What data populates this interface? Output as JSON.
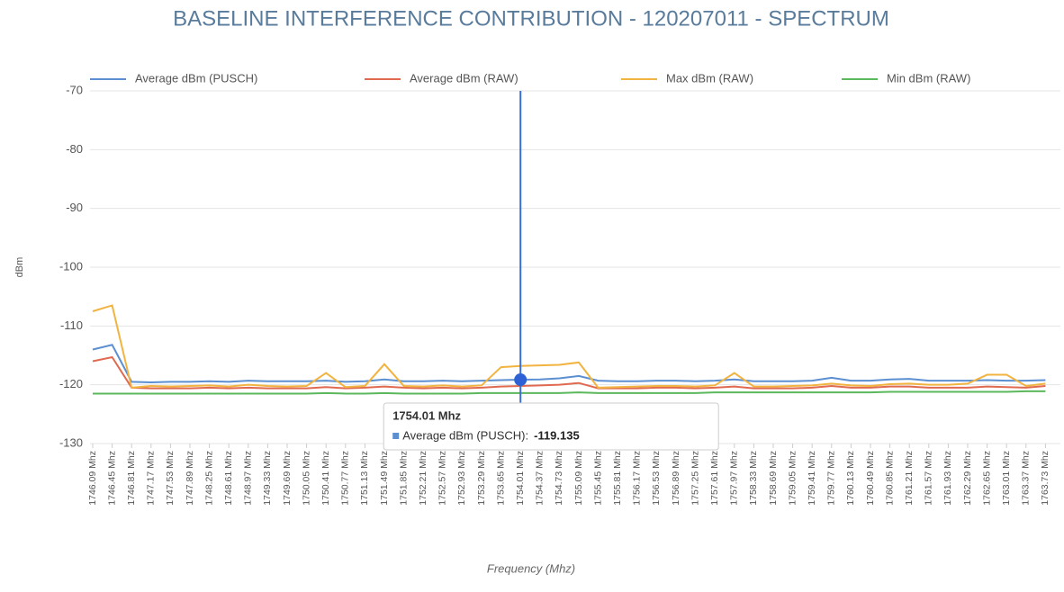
{
  "chart_data": {
    "type": "line",
    "title": "BASELINE INTERFERENCE CONTRIBUTION - 120207011 - SPECTRUM",
    "x_label": "Frequency (Mhz)",
    "y_label": "dBm",
    "categories": [
      "1746.09 Mhz",
      "1746.45 Mhz",
      "1746.81 Mhz",
      "1747.17 Mhz",
      "1747.53 Mhz",
      "1747.89 Mhz",
      "1748.25 Mhz",
      "1748.61 Mhz",
      "1748.97 Mhz",
      "1749.33 Mhz",
      "1749.69 Mhz",
      "1750.05 Mhz",
      "1750.41 Mhz",
      "1750.77 Mhz",
      "1751.13 Mhz",
      "1751.49 Mhz",
      "1751.85 Mhz",
      "1752.21 Mhz",
      "1752.57 Mhz",
      "1752.93 Mhz",
      "1753.29 Mhz",
      "1753.65 Mhz",
      "1754.01 Mhz",
      "1754.37 Mhz",
      "1754.73 Mhz",
      "1755.09 Mhz",
      "1755.45 Mhz",
      "1755.81 Mhz",
      "1756.17 Mhz",
      "1756.53 Mhz",
      "1756.89 Mhz",
      "1757.25 Mhz",
      "1757.61 Mhz",
      "1757.97 Mhz",
      "1758.33 Mhz",
      "1758.69 Mhz",
      "1759.05 Mhz",
      "1759.41 Mhz",
      "1759.77 Mhz",
      "1760.13 Mhz",
      "1760.49 Mhz",
      "1760.85 Mhz",
      "1761.21 Mhz",
      "1761.57 Mhz",
      "1761.93 Mhz",
      "1762.29 Mhz",
      "1762.65 Mhz",
      "1763.01 Mhz",
      "1763.37 Mhz",
      "1763.73 Mhz"
    ],
    "series": [
      {
        "name": "Average dBm (PUSCH)",
        "color": "#5b8fd1",
        "values": [
          -114,
          -113.2,
          -119.5,
          -119.6,
          -119.5,
          -119.5,
          -119.4,
          -119.5,
          -119.3,
          -119.4,
          -119.4,
          -119.4,
          -119.3,
          -119.5,
          -119.4,
          -119.1,
          -119.4,
          -119.4,
          -119.3,
          -119.4,
          -119.3,
          -119.2,
          -119.135,
          -119.1,
          -118.9,
          -118.5,
          -119.3,
          -119.4,
          -119.4,
          -119.3,
          -119.3,
          -119.4,
          -119.3,
          -119.1,
          -119.4,
          -119.4,
          -119.4,
          -119.3,
          -118.8,
          -119.3,
          -119.3,
          -119.1,
          -119,
          -119.3,
          -119.3,
          -119.3,
          -119.2,
          -119.3,
          -119.3,
          -119.2
        ]
      },
      {
        "name": "Average dBm (RAW)",
        "color": "#e06a50",
        "values": [
          -116,
          -115.3,
          -120.5,
          -120.6,
          -120.6,
          -120.6,
          -120.5,
          -120.6,
          -120.5,
          -120.6,
          -120.6,
          -120.6,
          -120.4,
          -120.6,
          -120.5,
          -120.3,
          -120.5,
          -120.6,
          -120.5,
          -120.6,
          -120.5,
          -120.3,
          -120.2,
          -120.1,
          -120,
          -119.7,
          -120.6,
          -120.6,
          -120.6,
          -120.5,
          -120.5,
          -120.6,
          -120.5,
          -120.3,
          -120.6,
          -120.6,
          -120.6,
          -120.5,
          -120.2,
          -120.5,
          -120.5,
          -120.3,
          -120.3,
          -120.5,
          -120.5,
          -120.5,
          -120.3,
          -120.4,
          -120.5,
          -120.2
        ]
      },
      {
        "name": "Max dBm (RAW)",
        "color": "#f2b441",
        "values": [
          -107.5,
          -106.5,
          -120.5,
          -120.2,
          -120.3,
          -120.2,
          -120.1,
          -120.3,
          -120,
          -120.2,
          -120.3,
          -120.2,
          -118,
          -120.4,
          -120.2,
          -116.5,
          -120.2,
          -120.3,
          -120.1,
          -120.3,
          -120.1,
          -117,
          -116.8,
          -116.7,
          -116.6,
          -116.2,
          -120.5,
          -120.4,
          -120.3,
          -120.2,
          -120.2,
          -120.3,
          -120.1,
          -118,
          -120.3,
          -120.3,
          -120.2,
          -120.1,
          -119.8,
          -120.1,
          -120.2,
          -119.9,
          -119.8,
          -120,
          -120,
          -119.8,
          -118.3,
          -118.3,
          -120.2,
          -119.8
        ]
      },
      {
        "name": "Min dBm (RAW)",
        "color": "#5cb85c",
        "values": [
          -121.5,
          -121.5,
          -121.5,
          -121.5,
          -121.5,
          -121.5,
          -121.5,
          -121.5,
          -121.5,
          -121.5,
          -121.5,
          -121.5,
          -121.4,
          -121.5,
          -121.5,
          -121.4,
          -121.5,
          -121.5,
          -121.5,
          -121.5,
          -121.4,
          -121.4,
          -121.4,
          -121.4,
          -121.4,
          -121.3,
          -121.4,
          -121.4,
          -121.4,
          -121.4,
          -121.4,
          -121.4,
          -121.3,
          -121.3,
          -121.3,
          -121.3,
          -121.3,
          -121.3,
          -121.3,
          -121.3,
          -121.3,
          -121.2,
          -121.2,
          -121.2,
          -121.2,
          -121.2,
          -121.2,
          -121.2,
          -121.1,
          -121.1
        ]
      }
    ],
    "ylim": [
      -130,
      -70
    ],
    "yticks": [
      -130,
      -120,
      -110,
      -100,
      -90,
      -80,
      -70
    ],
    "grid": true,
    "legend": "top",
    "tooltip": {
      "title": "1754.01 Mhz",
      "label": "Average dBm (PUSCH):",
      "value": -119.135
    }
  }
}
